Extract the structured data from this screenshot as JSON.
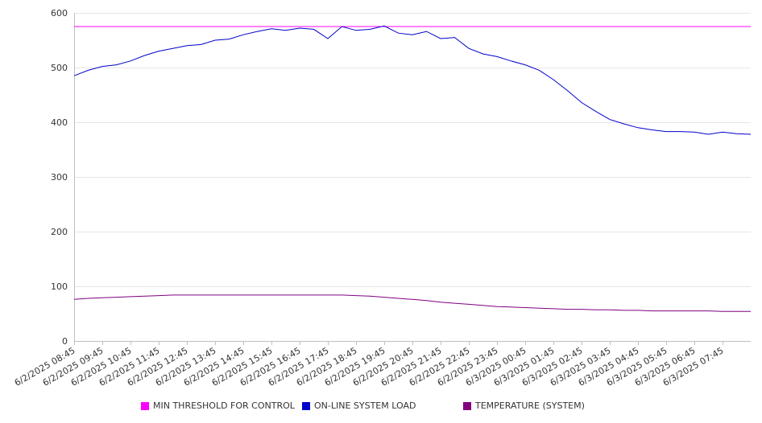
{
  "chart_data": {
    "type": "line",
    "title": "",
    "xlabel": "",
    "ylabel": "",
    "ylim": [
      0,
      600
    ],
    "yticks": [
      0,
      100,
      200,
      300,
      400,
      500,
      600
    ],
    "grid": true,
    "legend_position": "bottom",
    "x_tick_labels": [
      "6/2/2025 08:45",
      "6/2/2025 09:45",
      "6/2/2025 10:45",
      "6/2/2025 11:45",
      "6/2/2025 12:45",
      "6/2/2025 13:45",
      "6/2/2025 14:45",
      "6/2/2025 15:45",
      "6/2/2025 16:45",
      "6/2/2025 17:45",
      "6/2/2025 18:45",
      "6/2/2025 19:45",
      "6/2/2025 20:45",
      "6/2/2025 21:45",
      "6/2/2025 22:45",
      "6/2/2025 23:45",
      "6/3/2025 00:45",
      "6/3/2025 01:45",
      "6/3/2025 02:45",
      "6/3/2025 03:45",
      "6/3/2025 04:45",
      "6/3/2025 05:45",
      "6/3/2025 06:45",
      "6/3/2025 07:45"
    ],
    "series": [
      {
        "name": "MIN THRESHOLD FOR CONTROL",
        "color": "#ff00ff",
        "values": [
          575,
          575,
          575,
          575,
          575,
          575,
          575,
          575,
          575,
          575,
          575,
          575,
          575,
          575,
          575,
          575,
          575,
          575,
          575,
          575,
          575,
          575,
          575,
          575,
          575,
          575,
          575,
          575,
          575,
          575,
          575,
          575,
          575,
          575,
          575,
          575,
          575,
          575,
          575,
          575,
          575,
          575,
          575,
          575,
          575,
          575,
          575,
          575,
          575
        ]
      },
      {
        "name": "ON-LINE SYSTEM LOAD",
        "color": "#0000cc",
        "values": [
          485,
          495,
          502,
          505,
          512,
          522,
          530,
          535,
          540,
          542,
          550,
          552,
          560,
          566,
          571,
          568,
          572,
          570,
          553,
          575,
          568,
          570,
          576,
          563,
          560,
          566,
          553,
          555,
          535,
          525,
          520,
          512,
          505,
          495,
          478,
          458,
          436,
          420,
          405,
          397,
          390,
          386,
          383,
          383,
          382,
          378,
          382,
          379,
          378
        ]
      },
      {
        "name": "TEMPERATURE (SYSTEM)",
        "color": "#800080",
        "values": [
          76,
          78,
          79,
          80,
          81,
          82,
          83,
          84,
          84,
          84,
          84,
          84,
          84,
          84,
          84,
          84,
          84,
          84,
          84,
          84,
          83,
          82,
          80,
          78,
          76,
          74,
          71,
          69,
          67,
          65,
          63,
          62,
          61,
          60,
          59,
          58,
          58,
          57,
          57,
          56,
          56,
          55,
          55,
          55,
          55,
          55,
          54,
          54,
          54
        ]
      }
    ]
  }
}
